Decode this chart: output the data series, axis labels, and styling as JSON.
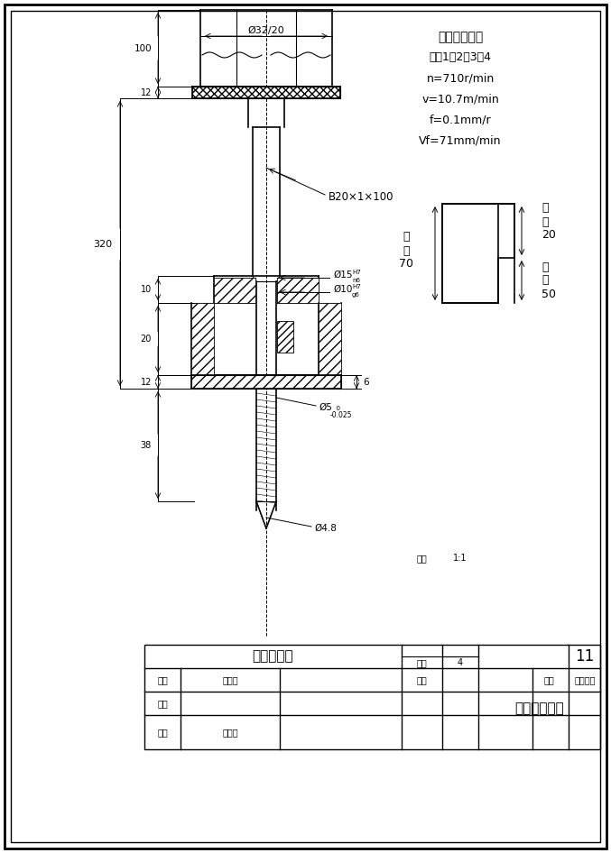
{
  "bg_color": "#ffffff",
  "line_color": "#000000",
  "title": "加工示意图",
  "info_text": [
    "多轴箱下端面",
    "主轴1、2、3、4",
    "n=710r/min",
    "v=10.7m/min",
    "f=0.1mm/r",
    "Vf=71mm/min"
  ],
  "tool_label": "B20×1×100",
  "dim_labels": {
    "d32": "Ø32/20",
    "d15": "Ø15",
    "d10": "Ø10",
    "d5": "Ø5",
    "d5_tol": "-0.025",
    "d4_8": "Ø4.8",
    "dim100": "100",
    "dim12a": "12",
    "dim320": "320",
    "dim10": "10",
    "dim20": "20",
    "dim12b": "12",
    "dim38": "38",
    "dim6": "6"
  },
  "cycle_labels": {
    "kuai_tui": "快\n退\n70",
    "kuai_jin": "快\n进\n20",
    "gong_jin": "工\n进\n50"
  },
  "title_block": {
    "label": "加工示意图",
    "scale": "1:1",
    "quantity": "4",
    "number": "11",
    "drawn_by": "孙士达",
    "approved_by": "吴永国",
    "weight": "",
    "material": "硬质合金",
    "company": "辽宁工业大学"
  }
}
